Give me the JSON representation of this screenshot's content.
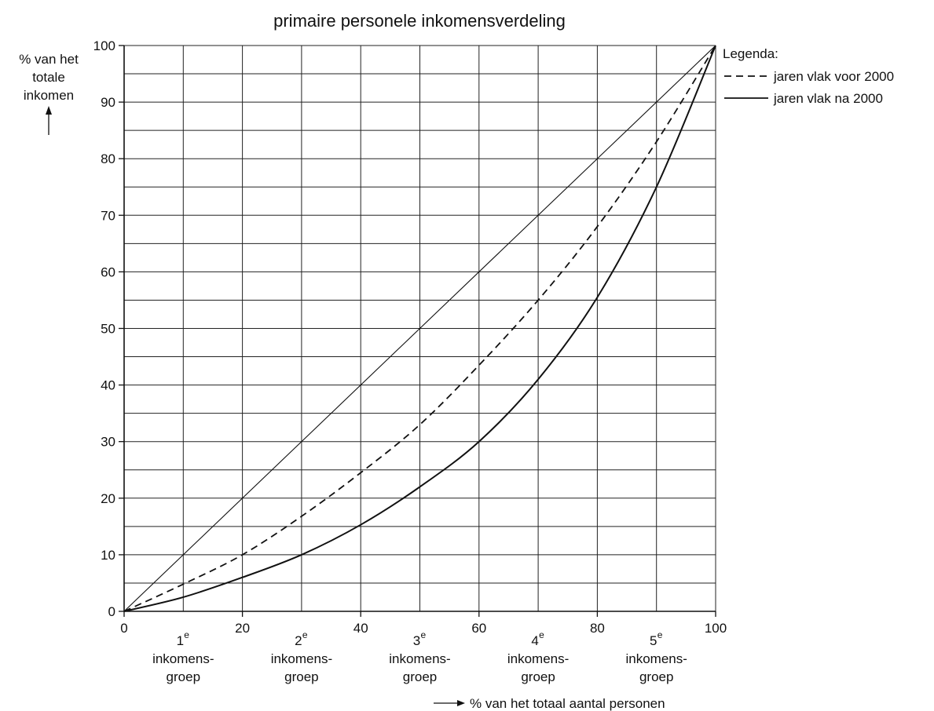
{
  "chart_data": {
    "type": "line",
    "title": "primaire personele inkomensverdeling",
    "ylabel": [
      "% van het",
      "totale",
      "inkomen"
    ],
    "xlabel": "% van het totaal aantal personen",
    "xlim": [
      0,
      100
    ],
    "ylim": [
      0,
      100
    ],
    "x_ticks": [
      "0",
      "20",
      "40",
      "60",
      "80",
      "100"
    ],
    "y_ticks": [
      "0",
      "10",
      "20",
      "30",
      "40",
      "50",
      "60",
      "70",
      "80",
      "90",
      "100"
    ],
    "groups": [
      {
        "num": "1",
        "sup": "e",
        "line1": "inkomens-",
        "line2": "groep",
        "x": 10
      },
      {
        "num": "2",
        "sup": "e",
        "line1": "inkomens-",
        "line2": "groep",
        "x": 30
      },
      {
        "num": "3",
        "sup": "e",
        "line1": "inkomens-",
        "line2": "groep",
        "x": 50
      },
      {
        "num": "4",
        "sup": "e",
        "line1": "inkomens-",
        "line2": "groep",
        "x": 70
      },
      {
        "num": "5",
        "sup": "e",
        "line1": "inkomens-",
        "line2": "groep",
        "x": 90
      }
    ],
    "legend": {
      "title": "Legenda:",
      "placement": "top-right",
      "items": [
        {
          "label": "jaren vlak voor 2000",
          "style": "dashed"
        },
        {
          "label": "jaren vlak na 2000",
          "style": "solid"
        }
      ]
    },
    "series": [
      {
        "style": "equality",
        "x": [
          0,
          100
        ],
        "y": [
          0,
          100
        ]
      },
      {
        "name": "jaren vlak voor 2000",
        "style": "dashed",
        "x": [
          0,
          10,
          20,
          30,
          40,
          50,
          60,
          70,
          80,
          90,
          100
        ],
        "y": [
          0,
          4.8,
          10,
          16.8,
          24.5,
          33,
          43.5,
          55,
          68,
          83,
          100
        ]
      },
      {
        "name": "jaren vlak na 2000",
        "style": "solid",
        "x": [
          0,
          10,
          20,
          30,
          40,
          50,
          60,
          70,
          80,
          90,
          100
        ],
        "y": [
          0,
          2.5,
          6,
          10,
          15.3,
          22,
          30,
          41,
          55.5,
          75,
          100
        ]
      }
    ],
    "grid": true,
    "colors": {
      "ink": "#111111",
      "grid": "#222222",
      "background": "#ffffff"
    }
  }
}
